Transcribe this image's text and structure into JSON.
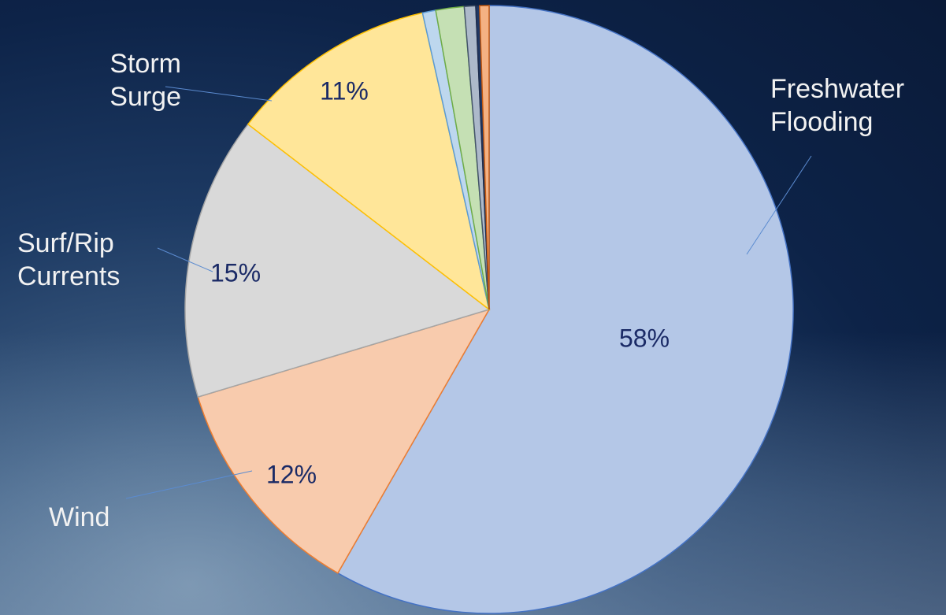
{
  "chart_data": {
    "type": "pie",
    "categories": [
      "Freshwater Flooding",
      "Wind",
      "Surf/Rip Currents",
      "Storm Surge",
      null,
      null,
      null,
      null,
      null
    ],
    "values": [
      58,
      12,
      15,
      11,
      0.7,
      1.5,
      0.6,
      0.2,
      0.5
    ],
    "value_labels": [
      "58%",
      "12%",
      "15%",
      "11%",
      null,
      null,
      null,
      null,
      null
    ],
    "colors": [
      "#b4c7e7",
      "#f8cbad",
      "#d9d9d9",
      "#ffe699",
      "#bdd7ee",
      "#c5e0b4",
      "#adb9ca",
      "#203864",
      "#f4b183"
    ],
    "edge_colors": [
      "#4472c4",
      "#ed7d31",
      "#a5a5a5",
      "#ffc000",
      "#5b9bd5",
      "#70ad47",
      "#44546a",
      "#1f2d4d",
      "#c55a11"
    ]
  }
}
